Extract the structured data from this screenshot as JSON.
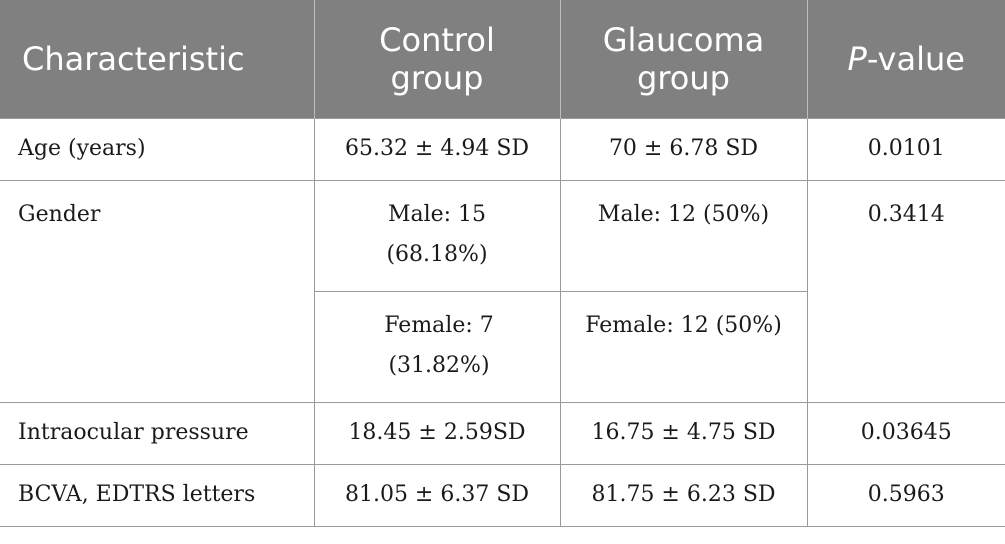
{
  "table": {
    "headers": {
      "characteristic": "Characteristic",
      "control_line1": "Control",
      "control_line2": "group",
      "glaucoma_line1": "Glaucoma",
      "glaucoma_line2": "group",
      "pvalue_italic": "P",
      "pvalue_rest": "-value"
    },
    "rows": {
      "age": {
        "label": "Age (years)",
        "control": "65.32 ± 4.94 SD",
        "glaucoma": "70 ± 6.78 SD",
        "p": "0.0101"
      },
      "gender": {
        "label": "Gender",
        "control_male_line1": "Male: 15",
        "control_male_line2": "(68.18%)",
        "glaucoma_male": "Male: 12 (50%)",
        "control_female_line1": "Female: 7",
        "control_female_line2": "(31.82%)",
        "glaucoma_female": "Female: 12 (50%)",
        "p": "0.3414"
      },
      "iop": {
        "label": "Intraocular pressure",
        "control": "18.45 ± 2.59SD",
        "glaucoma": "16.75 ± 4.75 SD",
        "p": "0.03645"
      },
      "bcva": {
        "label": "BCVA, EDTRS letters",
        "control": "81.05 ± 6.37 SD",
        "glaucoma": "81.75 ± 6.23 SD",
        "p": "0.5963"
      }
    }
  }
}
